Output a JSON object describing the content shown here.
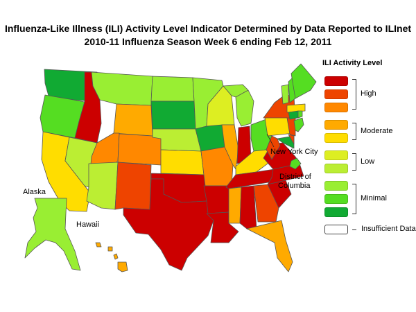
{
  "title": {
    "line1": "Influenza-Like Illness (ILI) Activity Level Indicator Determined by Data Reported to ILInet",
    "line2": "2010-11  Influenza Season Week  6 ending Feb 12, 2011"
  },
  "colors": {
    "high_10": "#cc0000",
    "high_9": "#ee4400",
    "high_8": "#ff8800",
    "moderate_7": "#ffaa00",
    "moderate_6": "#ffdd00",
    "low_5": "#ddee22",
    "low_4": "#bbee33",
    "minimal_3": "#99ee33",
    "minimal_2": "#55dd22",
    "minimal_1": "#11aa33",
    "insufficient": "#ffffff",
    "outline": "#555555"
  },
  "legend": {
    "title": "ILI Activity Level",
    "groups": [
      {
        "label": "High",
        "levels": [
          "high_10",
          "high_9",
          "high_8"
        ]
      },
      {
        "label": "Moderate",
        "levels": [
          "moderate_7",
          "moderate_6"
        ]
      },
      {
        "label": "Low",
        "levels": [
          "low_5",
          "low_4"
        ]
      },
      {
        "label": "Minimal",
        "levels": [
          "minimal_3",
          "minimal_2",
          "minimal_1"
        ]
      },
      {
        "label": "Insufficient Data",
        "levels": [
          "insufficient"
        ]
      }
    ]
  },
  "map_labels": {
    "alaska": "Alaska",
    "hawaii": "Hawaii",
    "new_york_city": "New York City",
    "dc_line1": "District of",
    "dc_line2": "Columbia"
  },
  "state_levels": {
    "WA": "minimal_1",
    "OR": "minimal_2",
    "ID": "high_10",
    "MT": "minimal_3",
    "WY": "moderate_7",
    "CA": "moderate_6",
    "NV": "low_4",
    "UT": "high_8",
    "AZ": "low_4",
    "CO": "high_8",
    "NM": "high_9",
    "ND": "minimal_3",
    "SD": "minimal_1",
    "NE": "low_4",
    "KS": "moderate_6",
    "OK": "high_10",
    "TX": "high_10",
    "MN": "minimal_3",
    "IA": "minimal_1",
    "MO": "high_8",
    "AR": "high_10",
    "LA": "high_10",
    "WI": "low_5",
    "IL": "moderate_7",
    "MI": "minimal_3",
    "IN": "high_10",
    "OH": "minimal_2",
    "KY": "moderate_6",
    "TN": "high_10",
    "MS": "moderate_7",
    "AL": "high_10",
    "GA": "high_9",
    "FL": "moderate_7",
    "SC": "high_10",
    "NC": "high_10",
    "VA": "high_10",
    "WV": "high_9",
    "PA": "moderate_6",
    "NY": "high_9",
    "NJ": "high_9",
    "DE": "high_9",
    "MD": "minimal_1",
    "VT": "minimal_3",
    "NH": "minimal_2",
    "ME": "minimal_2",
    "MA": "moderate_6",
    "CT": "minimal_1",
    "RI": "minimal_2",
    "AK": "minimal_3",
    "HI": "moderate_7",
    "NYC": "minimal_2",
    "DC": "minimal_2"
  }
}
